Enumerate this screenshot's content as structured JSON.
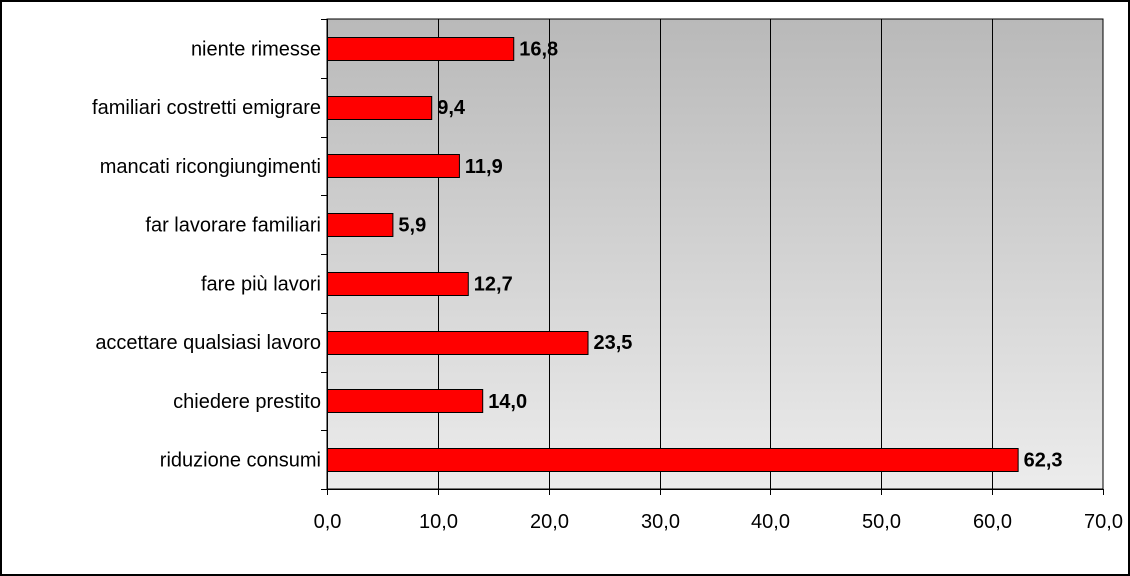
{
  "colors": {
    "bar_fill": "#ff0000",
    "bar_stroke": "#000000",
    "plot_gradient_top": "#b9b9b9",
    "plot_gradient_bottom": "#ececec",
    "grid": "#000000",
    "frame": "#000000"
  },
  "chart_data": {
    "type": "bar",
    "orientation": "horizontal",
    "categories": [
      "niente rimesse",
      "familiari costretti emigrare",
      "mancati ricongiungimenti",
      "far lavorare familiari",
      "fare più lavori",
      "accettare qualsiasi lavoro",
      "chiedere prestito",
      "riduzione consumi"
    ],
    "values": [
      16.8,
      9.4,
      11.9,
      5.9,
      12.7,
      23.5,
      14.0,
      62.3
    ],
    "value_labels": [
      "16,8",
      "9,4",
      "11,9",
      "5,9",
      "12,7",
      "23,5",
      "14,0",
      "62,3"
    ],
    "xlim": [
      0,
      70
    ],
    "x_ticks": [
      0,
      10,
      20,
      30,
      40,
      50,
      60,
      70
    ],
    "x_tick_labels": [
      "0,0",
      "10,0",
      "20,0",
      "30,0",
      "40,0",
      "50,0",
      "60,0",
      "70,0"
    ],
    "grid": "vertical major gridlines",
    "legend": "none",
    "title": "",
    "xlabel": "",
    "ylabel": ""
  }
}
